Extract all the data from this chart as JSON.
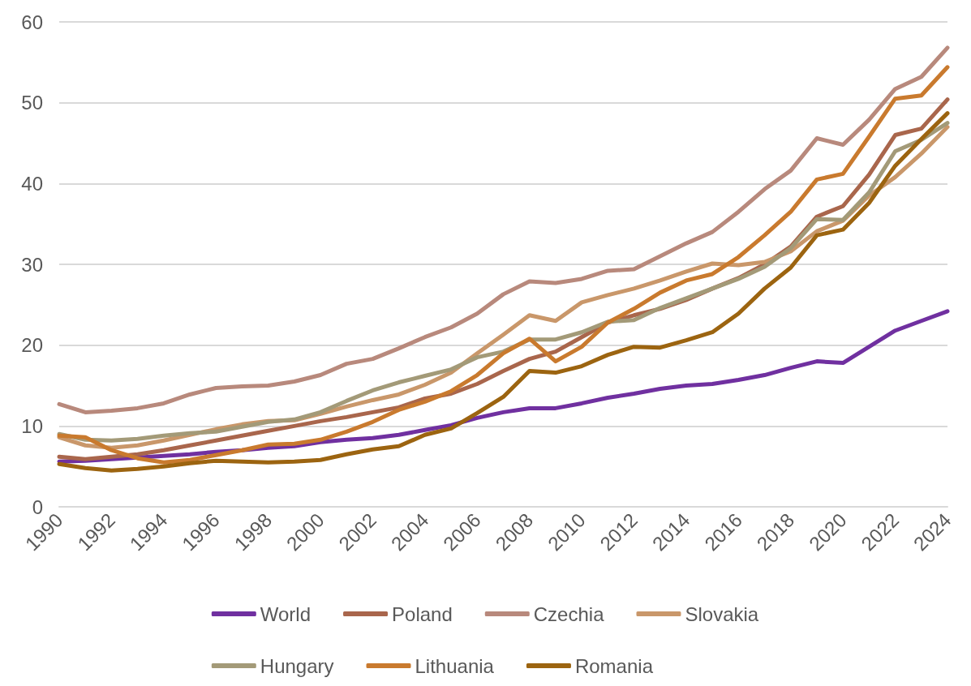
{
  "chart_data": {
    "type": "line",
    "categories": [
      "1990",
      null,
      "1992",
      null,
      "1994",
      null,
      "1996",
      null,
      "1998",
      null,
      "2000",
      null,
      "2002",
      null,
      "2004",
      null,
      "2006",
      null,
      "2008",
      null,
      "2010",
      null,
      "2012",
      null,
      "2014",
      null,
      "2016",
      null,
      "2018",
      null,
      "2020",
      null,
      "2022",
      null,
      "2024"
    ],
    "series": [
      {
        "name": "World",
        "color": "#7030a0",
        "values": [
          5.6,
          5.7,
          5.9,
          6.1,
          6.3,
          6.5,
          6.8,
          7.0,
          7.3,
          7.5,
          8.0,
          8.3,
          8.5,
          8.9,
          9.5,
          10.1,
          11.0,
          11.7,
          12.2,
          12.2,
          12.8,
          13.5,
          14.0,
          14.6,
          15.0,
          15.2,
          15.7,
          16.3,
          17.2,
          18.0,
          17.8,
          19.8,
          21.8,
          23.0,
          24.2
        ]
      },
      {
        "name": "Poland",
        "color": "#a9664c",
        "values": [
          6.2,
          5.9,
          6.2,
          6.5,
          7.0,
          7.6,
          8.2,
          8.8,
          9.4,
          10.0,
          10.6,
          11.1,
          11.7,
          12.3,
          13.4,
          14.0,
          15.2,
          16.8,
          18.3,
          19.2,
          21.0,
          22.8,
          23.7,
          24.5,
          25.6,
          27.0,
          28.3,
          30.0,
          32.2,
          35.9,
          37.2,
          41.1,
          46.0,
          46.8,
          50.4
        ]
      },
      {
        "name": "Czechia",
        "color": "#b8897c",
        "values": [
          12.7,
          11.7,
          11.9,
          12.2,
          12.8,
          13.9,
          14.7,
          14.9,
          15.0,
          15.5,
          16.3,
          17.7,
          18.3,
          19.6,
          21.0,
          22.2,
          23.9,
          26.3,
          27.9,
          27.7,
          28.2,
          29.2,
          29.4,
          31.0,
          32.6,
          34.0,
          36.5,
          39.3,
          41.6,
          45.6,
          44.8,
          47.9,
          51.7,
          53.2,
          56.8
        ]
      },
      {
        "name": "Slovakia",
        "color": "#c9976a",
        "values": [
          8.6,
          7.6,
          7.3,
          7.6,
          8.2,
          8.9,
          9.6,
          10.2,
          10.6,
          10.7,
          11.5,
          12.4,
          13.2,
          13.9,
          15.1,
          16.6,
          19.0,
          21.3,
          23.7,
          23.0,
          25.3,
          26.2,
          27.0,
          28.0,
          29.1,
          30.1,
          29.9,
          30.3,
          31.6,
          34.1,
          35.4,
          38.5,
          40.8,
          43.7,
          47.0
        ]
      },
      {
        "name": "Hungary",
        "color": "#a39a78",
        "values": [
          9.0,
          8.3,
          8.2,
          8.4,
          8.8,
          9.1,
          9.3,
          9.9,
          10.5,
          10.8,
          11.7,
          13.1,
          14.4,
          15.4,
          16.2,
          17.0,
          18.5,
          19.2,
          20.7,
          20.7,
          21.6,
          22.9,
          23.1,
          24.6,
          25.8,
          27.0,
          28.2,
          29.7,
          32.0,
          35.6,
          35.5,
          38.9,
          44.0,
          45.4,
          47.5
        ]
      },
      {
        "name": "Lithuania",
        "color": "#c97a2e",
        "values": [
          8.8,
          8.6,
          7.0,
          6.0,
          5.5,
          5.8,
          6.4,
          7.0,
          7.7,
          7.8,
          8.3,
          9.3,
          10.5,
          12.0,
          13.0,
          14.3,
          16.3,
          19.0,
          20.8,
          18.0,
          19.8,
          22.8,
          24.5,
          26.5,
          28.0,
          28.8,
          30.9,
          33.6,
          36.5,
          40.5,
          41.2,
          45.8,
          50.5,
          50.9,
          54.4
        ]
      },
      {
        "name": "Romania",
        "color": "#9c6410",
        "values": [
          5.3,
          4.8,
          4.5,
          4.7,
          5.0,
          5.4,
          5.7,
          5.6,
          5.5,
          5.6,
          5.8,
          6.5,
          7.1,
          7.5,
          8.9,
          9.7,
          11.6,
          13.6,
          16.8,
          16.6,
          17.4,
          18.8,
          19.8,
          19.7,
          20.6,
          21.6,
          23.9,
          27.0,
          29.6,
          33.6,
          34.3,
          37.6,
          42.2,
          45.5,
          48.7
        ]
      }
    ],
    "ylim": [
      0,
      60
    ],
    "yticks": [
      0,
      10,
      20,
      30,
      40,
      50,
      60
    ],
    "grid": "y",
    "legend": "bottom",
    "marker": "none",
    "line_style": "solid"
  }
}
